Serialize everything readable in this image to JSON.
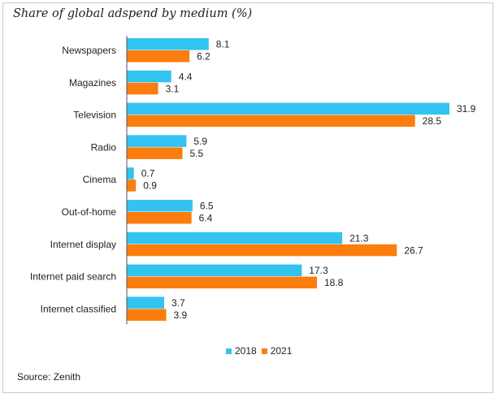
{
  "title": "Share of global adspend by medium (%)",
  "source": "Source: Zenith",
  "colors": {
    "series_2018": "#33c3f0",
    "series_2021": "#fb7d0d",
    "axis": "#555555"
  },
  "chart_data": {
    "type": "bar",
    "orientation": "horizontal",
    "title": "Share of global adspend by medium (%)",
    "categories": [
      "Newspapers",
      "Magazines",
      "Television",
      "Radio",
      "Cinema",
      "Out-of-home",
      "Internet display",
      "Internet paid search",
      "Internet classified"
    ],
    "series": [
      {
        "name": "2018",
        "values": [
          8.1,
          4.4,
          31.9,
          5.9,
          0.7,
          6.5,
          21.3,
          17.3,
          3.7
        ]
      },
      {
        "name": "2021",
        "values": [
          6.2,
          3.1,
          28.5,
          5.5,
          0.9,
          6.4,
          26.7,
          18.8,
          3.9
        ]
      }
    ],
    "xlim": [
      0,
      31.9
    ],
    "xlabel": "",
    "ylabel": "",
    "grid": false,
    "legend": "bottom-center",
    "value_labels": [
      "8.1",
      "6.2",
      "4.4",
      "3.1",
      "31.9",
      "28.5",
      "5.9",
      "5.5",
      "0.7",
      "0.9",
      "6.5",
      "6.4",
      "21.3",
      "26.7",
      "17.3",
      "18.8",
      "3.7",
      "3.9"
    ]
  }
}
